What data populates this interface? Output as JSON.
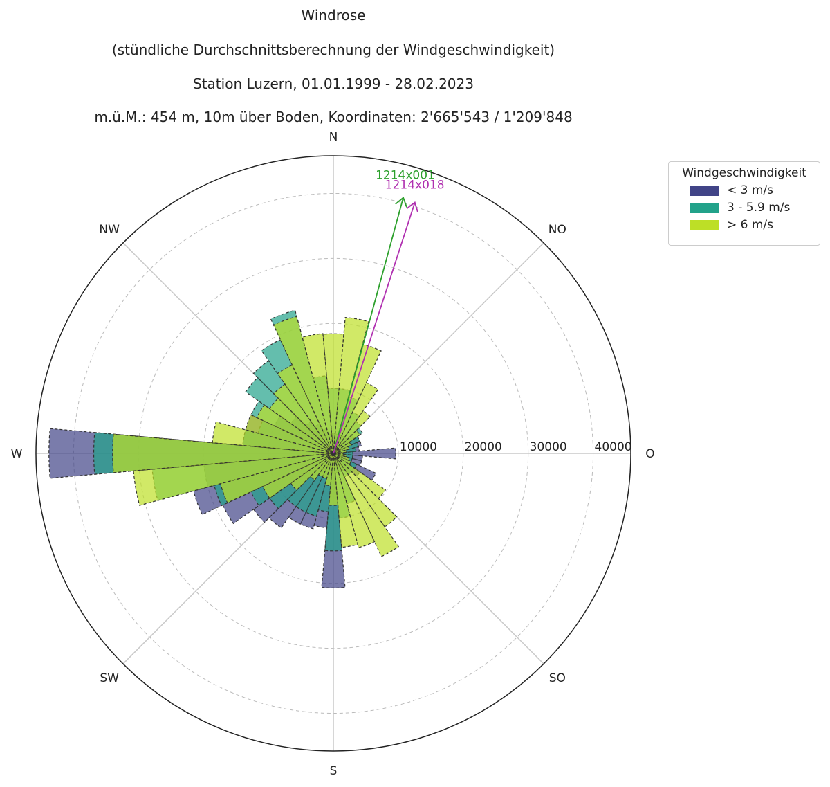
{
  "titles": [
    "Windrose",
    "(stündliche Durchschnittsberechnung der Windgeschwindigkeit)",
    "Station Luzern, 01.01.1999 - 28.02.2023",
    "m.ü.M.: 454 m, 10m über Boden, Koordinaten: 2'665'543 / 1'209'848"
  ],
  "chart_data": {
    "type": "windrose",
    "directions_deg": [
      0,
      10,
      20,
      30,
      40,
      50,
      60,
      70,
      80,
      90,
      100,
      110,
      120,
      130,
      140,
      150,
      160,
      170,
      180,
      190,
      200,
      210,
      220,
      230,
      240,
      250,
      260,
      270,
      280,
      290,
      300,
      310,
      320,
      330,
      340,
      350
    ],
    "compass_labels": [
      {
        "label": "N",
        "deg": 0
      },
      {
        "label": "NO",
        "deg": 45
      },
      {
        "label": "O",
        "deg": 90
      },
      {
        "label": "SO",
        "deg": 135
      },
      {
        "label": "S",
        "deg": 180
      },
      {
        "label": "SW",
        "deg": 225
      },
      {
        "label": "W",
        "deg": 270
      },
      {
        "label": "NW",
        "deg": 315
      }
    ],
    "radial_ticks": [
      10000,
      20000,
      30000,
      40000
    ],
    "rmax": 45800,
    "series": [
      {
        "name": "< 3 m/s",
        "color": "#414487",
        "values": [
          3000,
          3000,
          3000,
          3000,
          3000,
          4000,
          4500,
          4500,
          4000,
          9600,
          4500,
          4500,
          7200,
          5000,
          4000,
          3000,
          3000,
          3000,
          20700,
          11500,
          12000,
          12000,
          14000,
          15000,
          18800,
          22300,
          20000,
          43800,
          14000,
          14000,
          10000,
          8000,
          6000,
          5000,
          4000,
          3000
        ]
      },
      {
        "name": "3 - 5.9 m/s",
        "color": "#22a28a",
        "values": [
          10000,
          10000,
          9000,
          7000,
          6000,
          5500,
          4500,
          4000,
          3500,
          3000,
          3000,
          3000,
          4000,
          4000,
          4000,
          4000,
          8000,
          10000,
          15000,
          9000,
          10000,
          10000,
          10000,
          12000,
          14000,
          19000,
          28000,
          36900,
          14000,
          12000,
          14000,
          16500,
          17400,
          19300,
          22800,
          12000
        ]
      },
      {
        "name": "> 6 m/s",
        "color": "#bddf26",
        "values": [
          18400,
          21000,
          17400,
          12000,
          8000,
          5000,
          3000,
          2500,
          2000,
          1500,
          2000,
          2500,
          3000,
          9800,
          13800,
          17500,
          15000,
          14500,
          8000,
          5000,
          4000,
          4000,
          5000,
          8000,
          12000,
          18000,
          30900,
          34000,
          18700,
          14000,
          13000,
          12000,
          13000,
          15000,
          21800,
          18500
        ]
      }
    ],
    "arrows": [
      {
        "label": "1214x001",
        "color": "#2ca02c",
        "deg": 15.3,
        "value": 40800
      },
      {
        "label": "1214x018",
        "color": "#b030b0",
        "deg": 18,
        "value": 40600
      }
    ],
    "legend": {
      "title": "Windgeschwindigkeit",
      "placement": "top-right"
    }
  }
}
